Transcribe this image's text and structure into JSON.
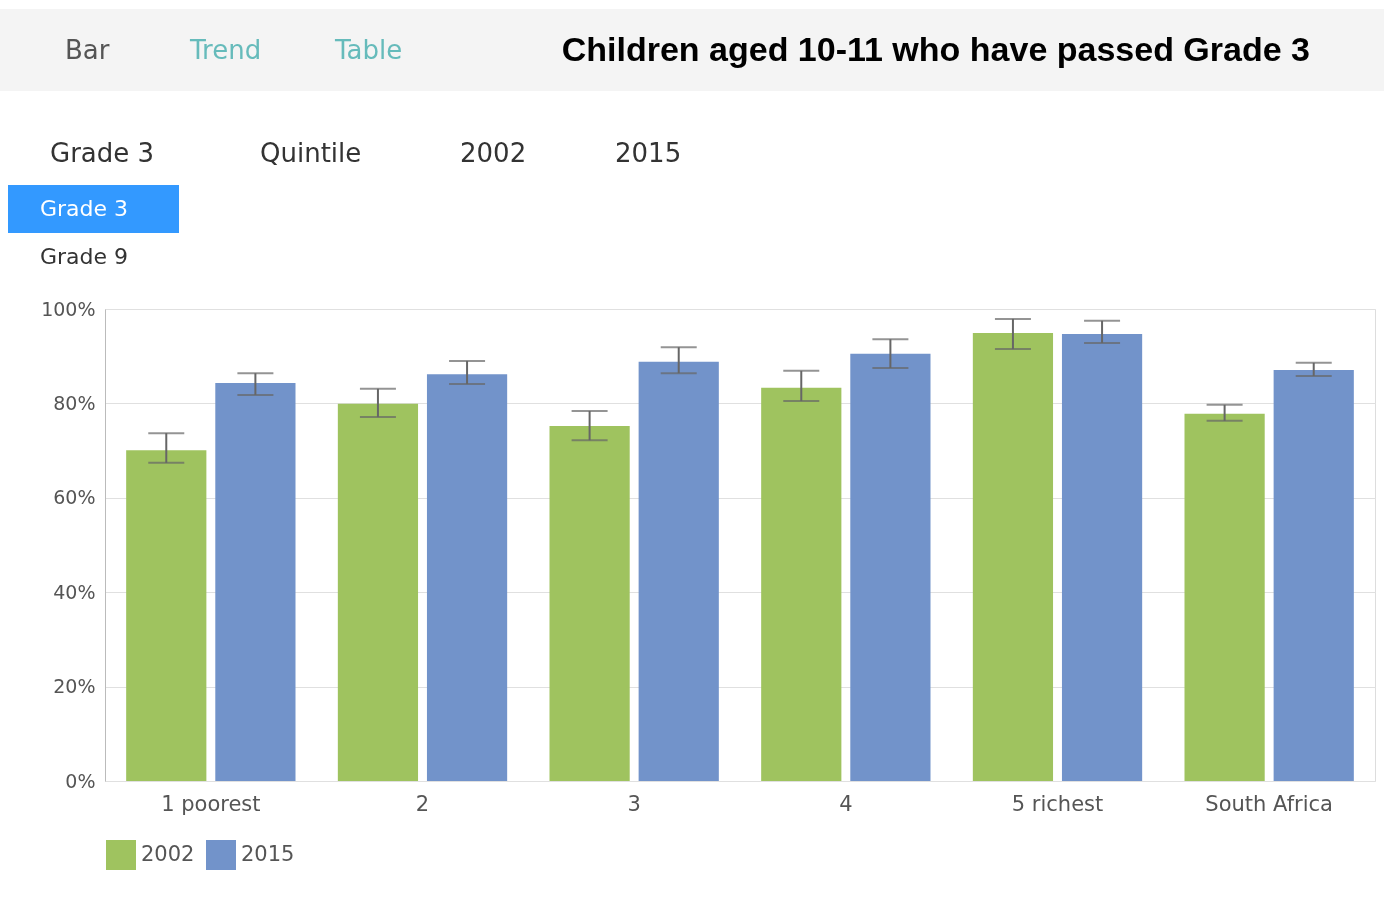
{
  "chart_data": {
    "type": "bar",
    "title": "Children aged 10-11 who have passed Grade 3",
    "categories": [
      "1 poorest",
      "2",
      "3",
      "4",
      "5 richest",
      "South Africa"
    ],
    "series": [
      {
        "name": "2002",
        "color": "#9fc35f",
        "values": [
          70.1,
          79.9,
          75.2,
          83.3,
          94.9,
          77.8
        ],
        "errors": [
          [
            67.4,
            73.7
          ],
          [
            77.1,
            83.1
          ],
          [
            72.2,
            78.4
          ],
          [
            80.5,
            86.9
          ],
          [
            91.5,
            97.9
          ],
          [
            76.3,
            79.7
          ]
        ]
      },
      {
        "name": "2015",
        "color": "#7293ca",
        "values": [
          84.3,
          86.2,
          88.8,
          90.5,
          94.7,
          87.1
        ],
        "errors": [
          [
            81.8,
            86.4
          ],
          [
            84.1,
            89.0
          ],
          [
            86.4,
            91.9
          ],
          [
            87.5,
            93.6
          ],
          [
            92.8,
            97.5
          ],
          [
            85.8,
            88.6
          ]
        ]
      }
    ],
    "ylim": [
      0,
      100
    ],
    "yticks": [
      {
        "value": 0,
        "label": "0%"
      },
      {
        "value": 20,
        "label": "20%"
      },
      {
        "value": 40,
        "label": "40%"
      },
      {
        "value": 60,
        "label": "60%"
      },
      {
        "value": 80,
        "label": "80%"
      },
      {
        "value": 100,
        "label": "100%"
      }
    ],
    "grid": "y",
    "legend": "bottom",
    "annotations": [
      "Bar",
      "Trend",
      "Table",
      "Grade 3",
      "Quintile",
      "2002",
      "2015",
      "Grade 3",
      "Grade 9"
    ]
  }
}
